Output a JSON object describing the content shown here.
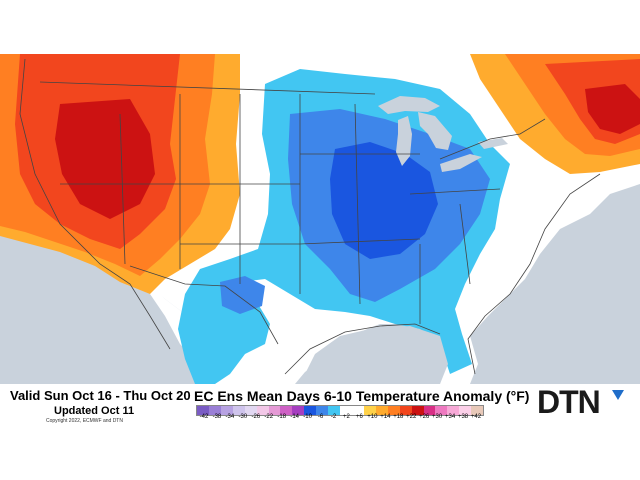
{
  "header": {
    "valid_range": "Valid Sun Oct 16 - Thu Oct 20",
    "updated": "Updated Oct 11",
    "copyright": "Copyright 2022, ECMWF and DTN"
  },
  "map": {
    "title": "EC Ens Mean Days 6-10 Temperature Anomaly (°F)",
    "background_color": "#c9d2dc",
    "land_neutral_color": "#ffffff"
  },
  "legend": {
    "ticks": [
      "-42",
      "-38",
      "-34",
      "-30",
      "-26",
      "-22",
      "-18",
      "-14",
      "-10",
      "-6",
      "-2",
      "+2",
      "+6",
      "+10",
      "+14",
      "+18",
      "+22",
      "+26",
      "+30",
      "+34",
      "+38",
      "+42"
    ],
    "colors": [
      "#7a5cc4",
      "#9a7fd6",
      "#b7a2e2",
      "#cfc4ec",
      "#e2d8f2",
      "#f3c8e8",
      "#e59ad6",
      "#cf62c6",
      "#a63ec0",
      "#1a56e0",
      "#3e86ea",
      "#42c6f2",
      "#ffffff",
      "#ffffff",
      "#ffd24a",
      "#ffab2e",
      "#ff7f22",
      "#f2461e",
      "#cc1212",
      "#d82f85",
      "#ee79c0",
      "#f7a9d7",
      "#fcd0e9",
      "#e8c9b9"
    ]
  },
  "logo": {
    "text": "DTN",
    "accent_color": "#1f6dc9"
  }
}
